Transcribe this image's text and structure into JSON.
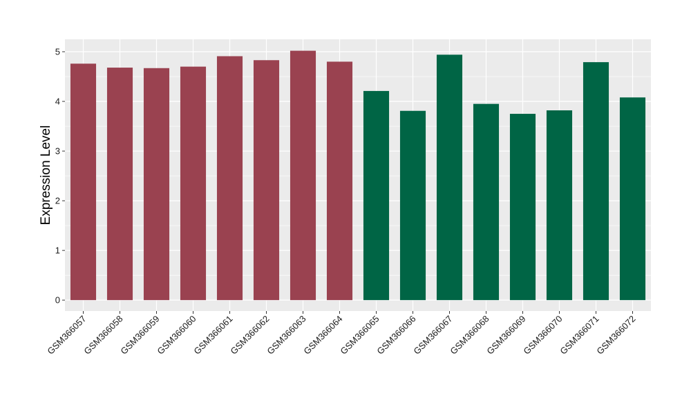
{
  "chart_data": {
    "type": "bar",
    "title": "",
    "xlabel": "",
    "ylabel": "Expression Level",
    "ylim": [
      -0.22,
      5.25
    ],
    "yticks": [
      0,
      1,
      2,
      3,
      4,
      5
    ],
    "grid": true,
    "legend": "none",
    "colors": {
      "panel_background": "#ebebeb",
      "grid_major": "#ffffff",
      "group_a": "#9a4250",
      "group_b": "#006545"
    },
    "categories": [
      "GSM366057",
      "GSM366058",
      "GSM366059",
      "GSM366060",
      "GSM366061",
      "GSM366062",
      "GSM366063",
      "GSM366064",
      "GSM366065",
      "GSM366066",
      "GSM366067",
      "GSM366068",
      "GSM366069",
      "GSM366070",
      "GSM366071",
      "GSM366072"
    ],
    "values": [
      4.76,
      4.68,
      4.67,
      4.7,
      4.91,
      4.83,
      5.02,
      4.8,
      4.21,
      3.81,
      4.94,
      3.95,
      3.75,
      3.82,
      4.79,
      4.08
    ],
    "groups": [
      "a",
      "a",
      "a",
      "a",
      "a",
      "a",
      "a",
      "a",
      "b",
      "b",
      "b",
      "b",
      "b",
      "b",
      "b",
      "b"
    ]
  }
}
